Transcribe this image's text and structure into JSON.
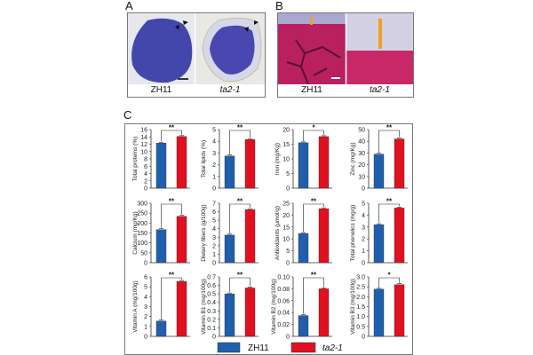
{
  "panels": {
    "a": {
      "label": "A",
      "left_caption": "ZH11",
      "right_caption": "ta2-1"
    },
    "b": {
      "label": "B",
      "left_caption": "ZH11",
      "right_caption": "ta2-1"
    },
    "c": {
      "label": "C"
    }
  },
  "colors": {
    "zh11": "#1f5fae",
    "ta2": "#e0101e",
    "stain_purple": "#4a4bb0",
    "tissue_red": "#c0205a",
    "marker": "#f0a020"
  },
  "chart_data": {
    "type": "bar",
    "legend": {
      "placement": "bottom",
      "entries": [
        "ZH11",
        "ta2-1"
      ]
    },
    "categories": [
      "ZH11",
      "ta2-1"
    ],
    "charts": [
      {
        "ylabel": "Total proteins (%)",
        "values": [
          12.3,
          14.1
        ],
        "ylim": [
          0,
          16
        ],
        "ticks": [
          "0",
          "2",
          "4",
          "6",
          "8",
          "10",
          "12",
          "14",
          "16"
        ],
        "sig": "**"
      },
      {
        "ylabel": "Total lipids (%)",
        "values": [
          2.75,
          4.15
        ],
        "ylim": [
          0,
          5
        ],
        "ticks": [
          "0",
          "1",
          "2",
          "3",
          "4",
          "5"
        ],
        "sig": "**"
      },
      {
        "ylabel": "Iron (mg/Kg)",
        "values": [
          15.5,
          17.6
        ],
        "ylim": [
          0,
          20
        ],
        "ticks": [
          "0",
          "5",
          "10",
          "15",
          "20"
        ],
        "sig": "*"
      },
      {
        "ylabel": "Zinc (mg/Kg)",
        "values": [
          29,
          42
        ],
        "ylim": [
          0,
          50
        ],
        "ticks": [
          "0",
          "10",
          "20",
          "30",
          "40",
          "50"
        ],
        "sig": "**"
      },
      {
        "ylabel": "Calcium (mg/Kg)",
        "values": [
          167,
          234
        ],
        "ylim": [
          0,
          300
        ],
        "ticks": [
          "0",
          "50",
          "100",
          "150",
          "200",
          "250",
          "300"
        ],
        "sig": "**"
      },
      {
        "ylabel": "Dietary fibers (g/100g)",
        "values": [
          3.25,
          6.25
        ],
        "ylim": [
          0,
          7
        ],
        "ticks": [
          "0",
          "1",
          "2",
          "3",
          "4",
          "5",
          "6",
          "7"
        ],
        "sig": "**"
      },
      {
        "ylabel": "Antioxidants (μmol/g)",
        "values": [
          12.3,
          22.7
        ],
        "ylim": [
          0,
          25
        ],
        "ticks": [
          "0",
          "5",
          "10",
          "15",
          "20",
          "25"
        ],
        "sig": "**"
      },
      {
        "ylabel": "Total phenolics (mg/g)",
        "values": [
          3.2,
          4.6
        ],
        "ylim": [
          0,
          5
        ],
        "ticks": [
          "0",
          "1",
          "2",
          "3",
          "4",
          "5"
        ],
        "sig": "**"
      },
      {
        "ylabel": "Vitamin A (mg/100g)",
        "values": [
          1.55,
          5.55
        ],
        "ylim": [
          0,
          6
        ],
        "ticks": [
          "0",
          "1",
          "2",
          "3",
          "4",
          "5",
          "6"
        ],
        "sig": "**"
      },
      {
        "ylabel": "Vitamin B1 (mg/100g)",
        "values": [
          0.5,
          0.57
        ],
        "ylim": [
          0,
          0.7
        ],
        "ticks": [
          "0",
          "0.1",
          "0.2",
          "0.3",
          "0.4",
          "0.5",
          "0.6",
          "0.7"
        ],
        "sig": "**"
      },
      {
        "ylabel": "Vitamin B2 (mg/100g)",
        "values": [
          0.035,
          0.08
        ],
        "ylim": [
          0,
          0.1
        ],
        "ticks": [
          "0",
          "0.02",
          "0.04",
          "0.06",
          "0.08",
          "0.10"
        ],
        "sig": "**"
      },
      {
        "ylabel": "Vitamin B3 (mg/100g)",
        "values": [
          2.38,
          2.61
        ],
        "ylim": [
          0,
          3
        ],
        "ticks": [
          "0",
          "0.5",
          "1.0",
          "1.5",
          "2.0",
          "2.5",
          "3.0"
        ],
        "sig": "*"
      }
    ]
  }
}
